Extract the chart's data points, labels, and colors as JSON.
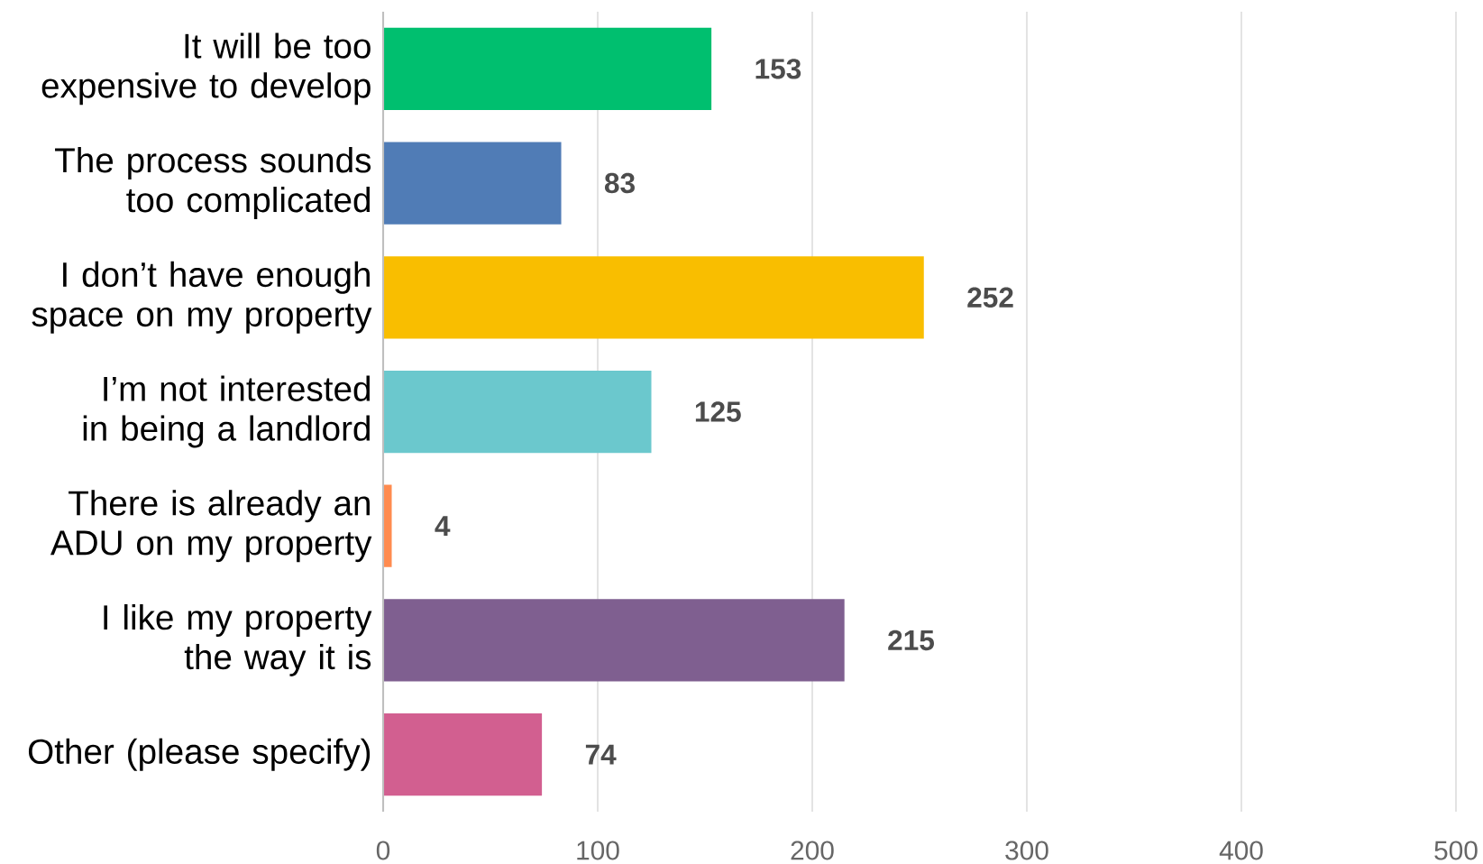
{
  "chart_data": {
    "type": "bar",
    "orientation": "horizontal",
    "categories": [
      "It will be too expensive to develop",
      "The process sounds too complicated",
      "I don’t have enough space on my property",
      "I’m not interested in being a landlord",
      "There is already an ADU on my property",
      "I like my property the way it is",
      "Other (please specify)"
    ],
    "values": [
      153,
      83,
      252,
      125,
      4,
      215,
      74
    ],
    "colors": [
      "#00bf6f",
      "#507cb6",
      "#f9be00",
      "#6bc8cd",
      "#ff8b4f",
      "#7f5f90",
      "#d25f90"
    ],
    "xlim": [
      0,
      500
    ],
    "xticks": [
      0,
      100,
      200,
      300,
      400,
      500
    ],
    "grid": "x",
    "data_labels": true
  }
}
